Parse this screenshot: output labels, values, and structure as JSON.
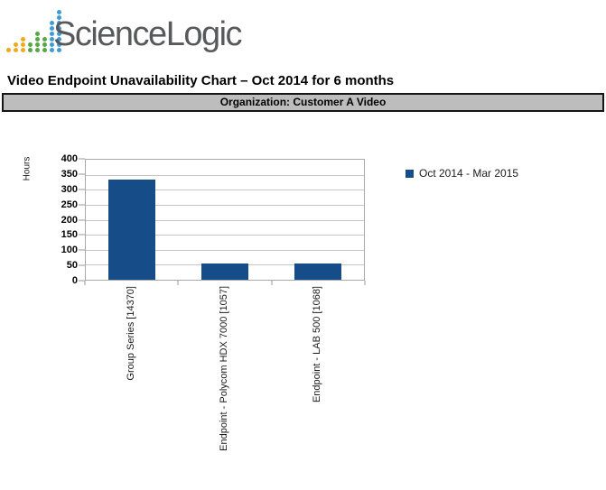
{
  "logo": {
    "text": "ScienceLogic",
    "dot_colors": {
      "gold": "#EEA920",
      "green": "#56A845",
      "blue": "#3E9BD6"
    },
    "columns": [
      {
        "color": "gold",
        "dots": 1
      },
      {
        "color": "gold",
        "dots": 2
      },
      {
        "color": "gold",
        "dots": 3
      },
      {
        "color": "green",
        "dots": 2
      },
      {
        "color": "green",
        "dots": 4
      },
      {
        "color": "green",
        "dots": 3
      },
      {
        "color": "blue",
        "dots": 6
      },
      {
        "color": "blue",
        "dots": 8
      }
    ]
  },
  "title": "Video Endpoint Unavailability Chart – Oct 2014 for 6 months",
  "organization_banner": {
    "label": "Organization: Customer A Video",
    "background": "#BDBDBD"
  },
  "chart_data": {
    "type": "bar",
    "title": "",
    "xlabel": "",
    "ylabel": "Hours",
    "categories": [
      "Group Series [14370]",
      "Endpoint - Polycom HDX 7000 [1057]",
      "Endpoint - LAB 500 [1068]"
    ],
    "series": [
      {
        "name": "Oct 2014 - Mar 2015",
        "color": "#164C88",
        "values": [
          335,
          55,
          55
        ]
      }
    ],
    "ylim": [
      0,
      400
    ],
    "yticks": [
      "0",
      "50",
      "100",
      "150",
      "200",
      "250",
      "300",
      "350",
      "400"
    ],
    "grid": true,
    "legend_position": "right"
  }
}
